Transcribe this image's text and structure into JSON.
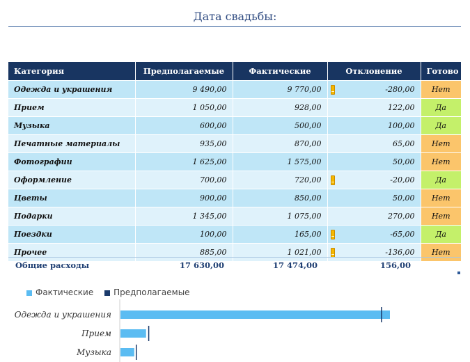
{
  "title": "Дата свадьбы:",
  "table": {
    "headers": [
      "Категория",
      "Предполагаемые",
      "Фактические",
      "Отклонение",
      "Готово"
    ],
    "rows": [
      {
        "category": "Одежда и украшения",
        "planned": "9 490,00",
        "actual": "9 770,00",
        "deviation": "-280,00",
        "ready": "Нет",
        "warn": true
      },
      {
        "category": "Прием",
        "planned": "1 050,00",
        "actual": "928,00",
        "deviation": "122,00",
        "ready": "Да",
        "warn": false
      },
      {
        "category": "Музыка",
        "planned": "600,00",
        "actual": "500,00",
        "deviation": "100,00",
        "ready": "Да",
        "warn": false
      },
      {
        "category": "Печатные материалы",
        "planned": "935,00",
        "actual": "870,00",
        "deviation": "65,00",
        "ready": "Нет",
        "warn": false
      },
      {
        "category": "Фотографии",
        "planned": "1 625,00",
        "actual": "1 575,00",
        "deviation": "50,00",
        "ready": "Нет",
        "warn": false
      },
      {
        "category": "Оформление",
        "planned": "700,00",
        "actual": "720,00",
        "deviation": "-20,00",
        "ready": "Да",
        "warn": true
      },
      {
        "category": "Цветы",
        "planned": "900,00",
        "actual": "850,00",
        "deviation": "50,00",
        "ready": "Нет",
        "warn": false
      },
      {
        "category": "Подарки",
        "planned": "1 345,00",
        "actual": "1 075,00",
        "deviation": "270,00",
        "ready": "Нет",
        "warn": false
      },
      {
        "category": "Поездки",
        "planned": "100,00",
        "actual": "165,00",
        "deviation": "-65,00",
        "ready": "Да",
        "warn": true
      },
      {
        "category": "Прочее",
        "planned": "885,00",
        "actual": "1 021,00",
        "deviation": "-136,00",
        "ready": "Нет",
        "warn": true
      }
    ],
    "totals": {
      "label": "Общие расходы",
      "planned": "17 630,00",
      "actual": "17 474,00",
      "deviation": "156,00"
    }
  },
  "colors": {
    "ready_no": "#fbc56b",
    "ready_yes": "#c4f06a",
    "header": "#183561",
    "actual_bar": "#5bbcf2",
    "planned_mark": "#1b3a6b"
  },
  "chart_data": {
    "type": "bar",
    "orientation": "horizontal",
    "title": "",
    "categories": [
      "Одежда и украшения",
      "Прием",
      "Музыка"
    ],
    "series": [
      {
        "name": "Фактические",
        "values": [
          9770,
          928,
          500
        ]
      },
      {
        "name": "Предполагаемые",
        "values": [
          9490,
          1050,
          600
        ]
      }
    ],
    "legend": [
      "Фактические",
      "Предполагаемые"
    ],
    "legend_position": "top-left",
    "xlim": [
      0,
      11000
    ]
  }
}
